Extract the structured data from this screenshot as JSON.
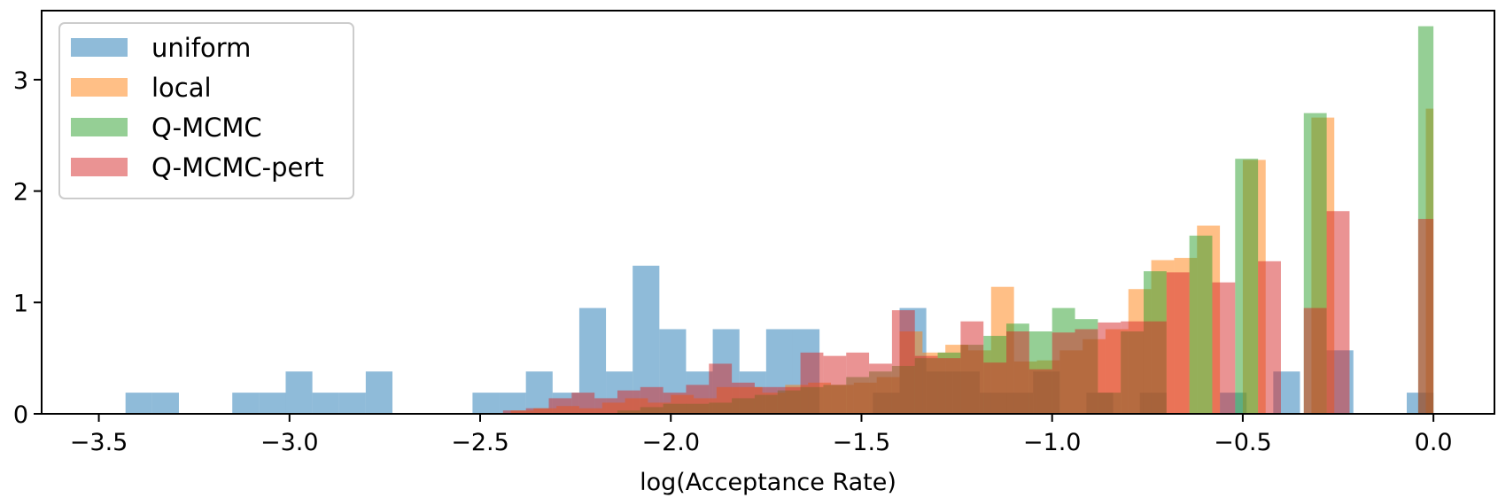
{
  "chart_data": {
    "type": "histogram",
    "xlabel": "log(Acceptance Rate)",
    "ylabel": "",
    "xlim": [
      -3.65,
      0.16
    ],
    "ylim": [
      0,
      3.62
    ],
    "xticks": [
      -3.5,
      -3.0,
      -2.5,
      -2.0,
      -1.5,
      -1.0,
      -0.5,
      0.0
    ],
    "xtick_labels": [
      "−3.5",
      "−3.0",
      "−2.5",
      "−2.0",
      "−1.5",
      "−1.0",
      "−0.5",
      "0.0"
    ],
    "yticks": [
      0,
      1,
      2,
      3
    ],
    "ytick_labels": [
      "0",
      "1",
      "2",
      "3"
    ],
    "legend_position": "top-left",
    "alpha": 0.5,
    "series": [
      {
        "name": "uniform",
        "color": "#1f77b4",
        "bin_edges": [
          -3.43,
          -3.36,
          -3.29,
          -3.22,
          -3.15,
          -3.08,
          -3.01,
          -2.94,
          -2.87,
          -2.8,
          -2.73,
          -2.66,
          -2.59,
          -2.52,
          -2.45,
          -2.38,
          -2.31,
          -2.24,
          -2.17,
          -2.1,
          -2.03,
          -1.96,
          -1.89,
          -1.82,
          -1.75,
          -1.68,
          -1.61,
          -1.54,
          -1.47,
          -1.4,
          -1.33,
          -1.26,
          -1.19,
          -1.12,
          -1.05,
          -0.98,
          -0.91,
          -0.84,
          -0.77,
          -0.7,
          -0.63,
          -0.56,
          -0.49,
          -0.42,
          -0.35,
          -0.28,
          -0.21,
          -0.14,
          -0.07,
          0.0
        ],
        "values": [
          0.19,
          0.19,
          0,
          0,
          0.19,
          0.19,
          0.38,
          0.19,
          0.19,
          0.38,
          0,
          0,
          0,
          0.19,
          0.19,
          0.38,
          0.19,
          0.95,
          0.38,
          1.33,
          0.76,
          0.38,
          0.76,
          0.38,
          0.76,
          0.76,
          0,
          0,
          0.19,
          0.95,
          0.38,
          0.38,
          0.19,
          0.19,
          0.38,
          0,
          0.19,
          0,
          0.19,
          0,
          0,
          0.19,
          0,
          0.38,
          0,
          0.57,
          0,
          0,
          0.19
        ]
      },
      {
        "name": "local",
        "color": "#ff7f0e",
        "bin_edges": [
          -2.42,
          -2.36,
          -2.3,
          -2.24,
          -2.18,
          -2.12,
          -2.06,
          -2.0,
          -1.94,
          -1.88,
          -1.82,
          -1.76,
          -1.7,
          -1.64,
          -1.58,
          -1.52,
          -1.46,
          -1.4,
          -1.34,
          -1.28,
          -1.22,
          -1.16,
          -1.1,
          -1.04,
          -0.98,
          -0.92,
          -0.86,
          -0.8,
          -0.74,
          -0.68,
          -0.62,
          -0.56,
          -0.5,
          -0.44,
          -0.38,
          -0.32,
          -0.26,
          -0.2,
          -0.14,
          -0.08,
          -0.02,
          0.0
        ],
        "values": [
          0.03,
          0.05,
          0.07,
          0.05,
          0.1,
          0.14,
          0.1,
          0.17,
          0.14,
          0.24,
          0.24,
          0.19,
          0.26,
          0.28,
          0.26,
          0.28,
          0.33,
          0.74,
          0.55,
          0.62,
          0.57,
          1.14,
          0.47,
          0.48,
          0.57,
          0.67,
          0.76,
          1.12,
          1.38,
          1.4,
          1.69,
          0,
          2.28,
          0,
          0,
          2.66,
          0,
          0,
          0,
          0,
          2.74
        ]
      },
      {
        "name": "Q-MCMC",
        "color": "#2ca02c",
        "bin_edges": [
          -2.14,
          -2.08,
          -2.02,
          -1.96,
          -1.9,
          -1.84,
          -1.78,
          -1.72,
          -1.66,
          -1.6,
          -1.54,
          -1.48,
          -1.42,
          -1.36,
          -1.3,
          -1.24,
          -1.18,
          -1.12,
          -1.06,
          -1.0,
          -0.94,
          -0.88,
          -0.82,
          -0.76,
          -0.7,
          -0.64,
          -0.58,
          -0.52,
          -0.46,
          -0.4,
          -0.34,
          -0.28,
          -0.22,
          -0.16,
          -0.1,
          -0.04,
          0.0
        ],
        "values": [
          0.03,
          0.06,
          0.09,
          0.09,
          0.1,
          0.14,
          0.17,
          0.21,
          0.24,
          0.26,
          0.33,
          0.38,
          0.43,
          0.5,
          0.55,
          0.62,
          0.7,
          0.81,
          0.74,
          0.95,
          0.85,
          0.19,
          0.74,
          1.28,
          0,
          1.6,
          0,
          2.29,
          0,
          0,
          2.7,
          0,
          0,
          0,
          0,
          3.48
        ]
      },
      {
        "name": "Q-MCMC-pert",
        "color": "#d62728",
        "bin_edges": [
          -2.44,
          -2.38,
          -2.32,
          -2.26,
          -2.2,
          -2.14,
          -2.08,
          -2.02,
          -1.96,
          -1.9,
          -1.84,
          -1.78,
          -1.72,
          -1.66,
          -1.6,
          -1.54,
          -1.48,
          -1.42,
          -1.36,
          -1.3,
          -1.24,
          -1.18,
          -1.12,
          -1.06,
          -1.0,
          -0.94,
          -0.88,
          -0.82,
          -0.76,
          -0.7,
          -0.64,
          -0.58,
          -0.52,
          -0.46,
          -0.4,
          -0.34,
          -0.28,
          -0.22,
          -0.16,
          -0.1,
          -0.04,
          0.0
        ],
        "values": [
          0.03,
          0.05,
          0.14,
          0.19,
          0.14,
          0.21,
          0.24,
          0.19,
          0.26,
          0.45,
          0.28,
          0.24,
          0.24,
          0.55,
          0.52,
          0.55,
          0.45,
          0.93,
          0.52,
          0.5,
          0.83,
          0.46,
          0.74,
          0.4,
          0.73,
          0.76,
          0.82,
          0.83,
          0.83,
          1.27,
          0,
          1.18,
          0,
          1.37,
          0,
          0.95,
          1.82,
          0,
          0,
          0,
          1.75
        ]
      }
    ]
  }
}
